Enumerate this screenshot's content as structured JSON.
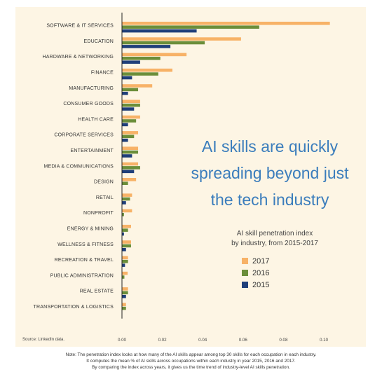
{
  "headline_lines": [
    "AI skills are quickly",
    "spreading beyond just",
    "the tech industry"
  ],
  "subtitle_lines": [
    "AI skill penetration index",
    "by industry, from 2015-2017"
  ],
  "source": "Source: LinkedIn data.",
  "note_lines": [
    "Note: The penetration index looks at how many of the AI skills appear among top 30 skills for each occupation in each industry.",
    "It computes the mean % of AI skills across occupations within each industry in year 2015, 2016 and 2017.",
    "By comparing the index across years, it gives us the time trend of industry-level AI skills penetration."
  ],
  "colors": {
    "2017": "#f7b267",
    "2016": "#6b8e3a",
    "2015": "#1f3f7a",
    "axis": "#222222"
  },
  "chart_data": {
    "type": "bar",
    "orientation": "horizontal",
    "categories": [
      "SOFTWARE & IT SERVICES",
      "EDUCATION",
      "HARDWARE & NETWORKING",
      "FINANCE",
      "MANUFACTURING",
      "CONSUMER GOODS",
      "HEALTH CARE",
      "CORPORATE SERVICES",
      "ENTERTAINMENT",
      "MEDIA & COMMUNICATIONS",
      "DESIGN",
      "RETAIL",
      "NONPROFIT",
      "ENERGY & MINING",
      "WELLNESS & FITNESS",
      "RECREATION & TRAVEL",
      "PUBLIC ADMINISTRATION",
      "REAL ESTATE",
      "TRANSPORTATION & LOGISTICS"
    ],
    "series": [
      {
        "name": "2017",
        "values": [
          0.103,
          0.059,
          0.032,
          0.025,
          0.015,
          0.009,
          0.009,
          0.008,
          0.008,
          0.008,
          0.007,
          0.005,
          0.005,
          0.0045,
          0.0045,
          0.003,
          0.0028,
          0.003,
          0.002
        ]
      },
      {
        "name": "2016",
        "values": [
          0.068,
          0.041,
          0.019,
          0.018,
          0.008,
          0.009,
          0.007,
          0.006,
          0.008,
          0.009,
          0.003,
          0.004,
          0.001,
          0.003,
          0.0045,
          0.003,
          0.0012,
          0.003,
          0.002
        ]
      },
      {
        "name": "2015",
        "values": [
          0.037,
          0.024,
          0.009,
          0.005,
          0.003,
          0.006,
          0.003,
          0.003,
          0.005,
          0.006,
          0.0,
          0.002,
          0.0,
          0.001,
          0.002,
          0.0015,
          0.0,
          0.002,
          0.0
        ]
      }
    ],
    "xticks": [
      "0.00",
      "0.02",
      "0.04",
      "0.06",
      "0.08",
      "0.10"
    ],
    "xlim": [
      0.0,
      0.1
    ],
    "legend_order": [
      "2017",
      "2016",
      "2015"
    ],
    "legend_position": "right"
  }
}
